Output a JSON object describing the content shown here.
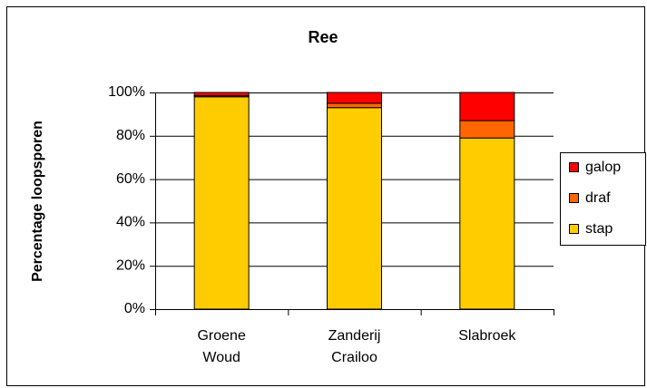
{
  "chart_data": {
    "type": "stacked_bar",
    "title": "Ree",
    "y_label": "Percentage loopsporen",
    "categories": [
      "Groene Woud",
      "Zanderij Crailoo",
      "Slabroek"
    ],
    "series": [
      {
        "name": "stap",
        "color": "#ffcc00",
        "values": [
          98,
          93,
          79
        ]
      },
      {
        "name": "draf",
        "color": "#ff6600",
        "values": [
          0.5,
          2,
          8
        ]
      },
      {
        "name": "galop",
        "color": "#ff0000",
        "values": [
          1.5,
          5,
          13
        ]
      }
    ],
    "ylim": [
      0,
      100
    ],
    "yticks": [
      {
        "value": 0,
        "label": "0%"
      },
      {
        "value": 20,
        "label": "20%"
      },
      {
        "value": 40,
        "label": "40%"
      },
      {
        "value": 60,
        "label": "60%"
      },
      {
        "value": 80,
        "label": "80%"
      },
      {
        "value": 100,
        "label": "100%"
      }
    ],
    "grid": true,
    "legend": "right"
  }
}
